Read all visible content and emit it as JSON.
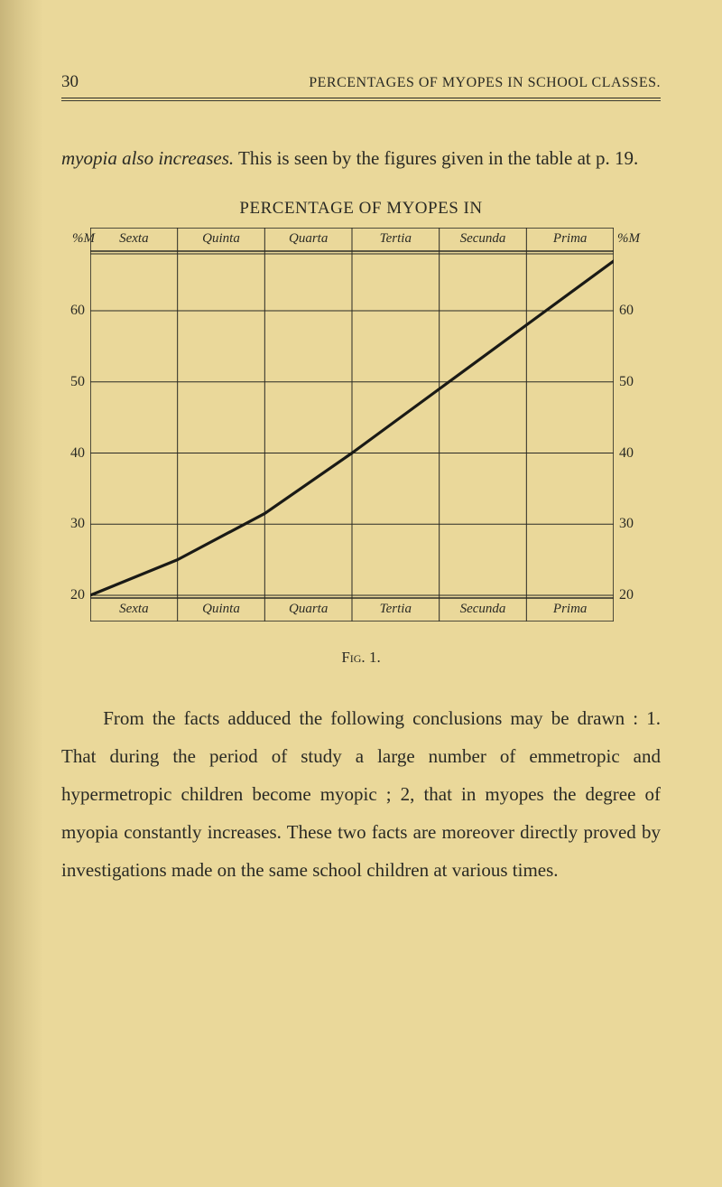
{
  "running_head": {
    "page_number": "30",
    "text": "PERCENTAGES OF MYOPES IN SCHOOL CLASSES."
  },
  "para1": {
    "lead_italic": "myopia also increases.",
    "rest": " This is seen by the figures given in the table at p. 19."
  },
  "chart": {
    "title": "PERCENTAGE OF MYOPES IN",
    "categories": [
      "Sexta",
      "Quinta",
      "Quarta",
      "Tertia",
      "Secunda",
      "Prima"
    ],
    "bottom_categories": [
      "Sexta",
      "Quinta",
      "Quarta",
      "Tertia",
      "Secunda",
      "Prima"
    ],
    "left_axis_label": "%M",
    "right_axis_label": "%M",
    "y_ticks": [
      20,
      30,
      40,
      50,
      60
    ],
    "ylim": [
      20,
      68
    ],
    "values_by_category": [
      20,
      25,
      31.5,
      40,
      49,
      58
    ],
    "line_color": "#1a1a16",
    "line_width": 3.2,
    "outer_rule_width": 1.6,
    "inner_rule_width": 0.9,
    "grid_width": 1.0,
    "grid_color": "#2a2a24",
    "background": "#ead89a",
    "top_header_height": 26,
    "bottom_header_height": 26,
    "inner_double_gap": 3
  },
  "fig_caption_label": "Fig.",
  "fig_caption_num": "1.",
  "para2": "From the facts adduced the following conclusions may be drawn : 1. That during the period of study a large number of emmetropic and hypermetropic children become myopic ; 2, that in myopes the degree of myopia constantly increases. These two facts are moreover directly proved by investigations made on the same school children at various times."
}
